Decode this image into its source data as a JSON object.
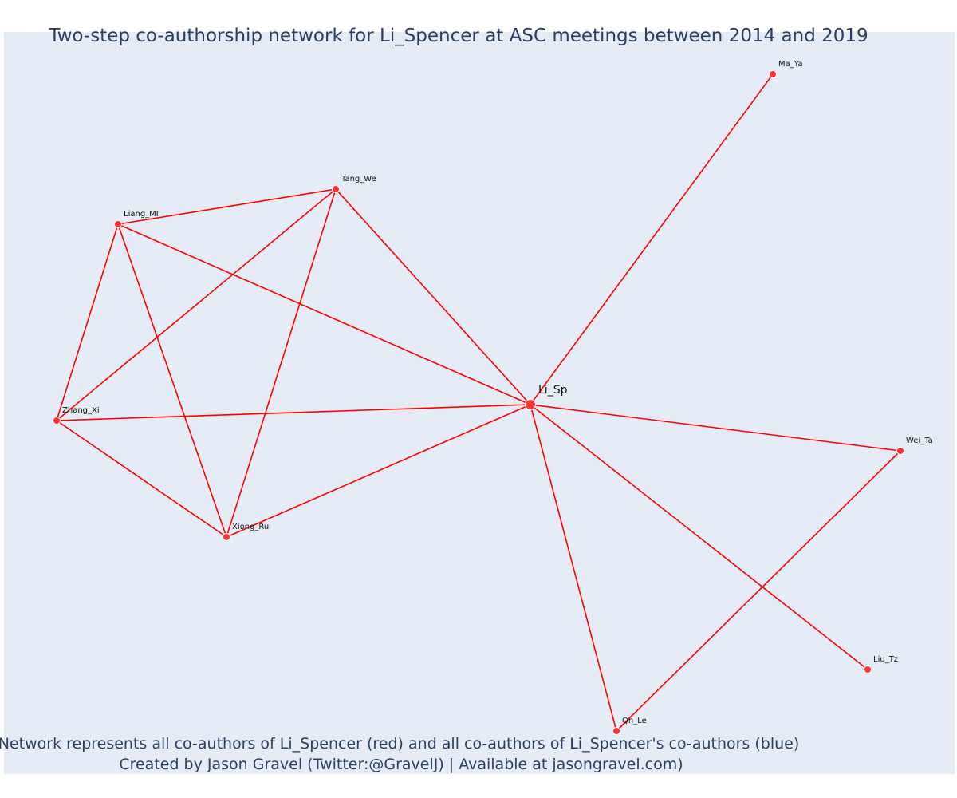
{
  "chart": {
    "title": "Two-step co-authorship network for Li_Spencer at ASC meetings between 2014 and 2019",
    "caption_line1": "Network represents all co-authors of Li_Spencer (red) and all co-authors of Li_Spencer's co-authors (blue)",
    "caption_line2": "Created by Jason Gravel (Twitter:@GravelJ) | Available at jasongravel.com)"
  },
  "colors": {
    "plot_background": "#e5ecf6",
    "edge": "#ff0000",
    "node": "#ff3333",
    "text": "#2a3f5f"
  },
  "chart_data": {
    "type": "network",
    "focal_node": "Li_Sp",
    "nodes": [
      {
        "id": "Li_Sp",
        "label": "Li_Sp",
        "group": "co-author",
        "focal": true
      },
      {
        "id": "Ma_Ya",
        "label": "Ma_Ya",
        "group": "co-author"
      },
      {
        "id": "Tang_We",
        "label": "Tang_We",
        "group": "co-author"
      },
      {
        "id": "Liang_MI",
        "label": "Liang_MI",
        "group": "co-author"
      },
      {
        "id": "Zhang_Xi",
        "label": "Zhang_Xi",
        "group": "co-author"
      },
      {
        "id": "Xiong_Ru",
        "label": "Xiong_Ru",
        "group": "co-author"
      },
      {
        "id": "Wei_Ta",
        "label": "Wei_Ta",
        "group": "co-author"
      },
      {
        "id": "Liu_Tz",
        "label": "Liu_Tz",
        "group": "co-author"
      },
      {
        "id": "Qn_Le",
        "label": "Qn_Le",
        "group": "co-author"
      }
    ],
    "edges": [
      [
        "Li_Sp",
        "Ma_Ya"
      ],
      [
        "Li_Sp",
        "Tang_We"
      ],
      [
        "Li_Sp",
        "Liang_MI"
      ],
      [
        "Li_Sp",
        "Zhang_Xi"
      ],
      [
        "Li_Sp",
        "Xiong_Ru"
      ],
      [
        "Li_Sp",
        "Wei_Ta"
      ],
      [
        "Li_Sp",
        "Liu_Tz"
      ],
      [
        "Li_Sp",
        "Qn_Le"
      ],
      [
        "Liang_MI",
        "Tang_We"
      ],
      [
        "Liang_MI",
        "Zhang_Xi"
      ],
      [
        "Liang_MI",
        "Xiong_Ru"
      ],
      [
        "Tang_We",
        "Zhang_Xi"
      ],
      [
        "Tang_We",
        "Xiong_Ru"
      ],
      [
        "Zhang_Xi",
        "Xiong_Ru"
      ],
      [
        "Wei_Ta",
        "Qn_Le"
      ]
    ]
  }
}
